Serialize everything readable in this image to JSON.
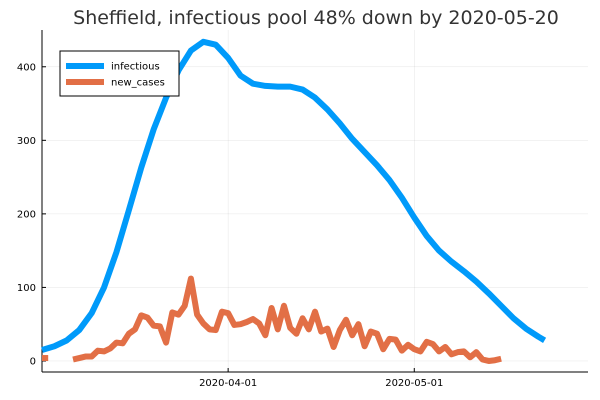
{
  "chart_data": {
    "type": "line",
    "title": "Sheffield, infectious pool 48% down by 2020-05-20",
    "xlabel": "",
    "ylabel": "",
    "x_range": [
      "2020-03-02",
      "2020-05-29"
    ],
    "ylim": [
      -15,
      450
    ],
    "grid": true,
    "legend_position": "top-left",
    "x_ticks": [
      {
        "date": "2020-04-01",
        "label": "2020-04-01"
      },
      {
        "date": "2020-05-01",
        "label": "2020-05-01"
      }
    ],
    "y_ticks": [
      0,
      100,
      200,
      300,
      400
    ],
    "colors": {
      "infectious": "#009AFA",
      "new_cases": "#E26F46"
    },
    "series": [
      {
        "name": "infectious",
        "points": [
          [
            "2020-03-02",
            15
          ],
          [
            "2020-03-04",
            20
          ],
          [
            "2020-03-06",
            28
          ],
          [
            "2020-03-08",
            42
          ],
          [
            "2020-03-10",
            65
          ],
          [
            "2020-03-12",
            100
          ],
          [
            "2020-03-14",
            148
          ],
          [
            "2020-03-16",
            205
          ],
          [
            "2020-03-18",
            263
          ],
          [
            "2020-03-20",
            315
          ],
          [
            "2020-03-22",
            358
          ],
          [
            "2020-03-24",
            395
          ],
          [
            "2020-03-26",
            422
          ],
          [
            "2020-03-28",
            434
          ],
          [
            "2020-03-30",
            430
          ],
          [
            "2020-04-01",
            412
          ],
          [
            "2020-04-03",
            388
          ],
          [
            "2020-04-05",
            377
          ],
          [
            "2020-04-07",
            374
          ],
          [
            "2020-04-09",
            373
          ],
          [
            "2020-04-11",
            373
          ],
          [
            "2020-04-13",
            369
          ],
          [
            "2020-04-15",
            358
          ],
          [
            "2020-04-17",
            342
          ],
          [
            "2020-04-19",
            323
          ],
          [
            "2020-04-21",
            302
          ],
          [
            "2020-04-23",
            284
          ],
          [
            "2020-04-25",
            266
          ],
          [
            "2020-04-27",
            246
          ],
          [
            "2020-04-29",
            222
          ],
          [
            "2020-05-01",
            195
          ],
          [
            "2020-05-03",
            170
          ],
          [
            "2020-05-05",
            150
          ],
          [
            "2020-05-07",
            135
          ],
          [
            "2020-05-09",
            122
          ],
          [
            "2020-05-11",
            108
          ],
          [
            "2020-05-13",
            92
          ],
          [
            "2020-05-15",
            75
          ],
          [
            "2020-05-17",
            58
          ],
          [
            "2020-05-19",
            44
          ],
          [
            "2020-05-21",
            33
          ],
          [
            "2020-05-22",
            28
          ]
        ]
      },
      {
        "name": "new_cases",
        "segments": [
          [
            [
              "2020-03-02",
              4
            ],
            [
              "2020-03-03",
              4
            ]
          ],
          [
            [
              "2020-03-07",
              2
            ],
            [
              "2020-03-08",
              4
            ],
            [
              "2020-03-09",
              6
            ],
            [
              "2020-03-10",
              6
            ],
            [
              "2020-03-11",
              14
            ],
            [
              "2020-03-12",
              13
            ],
            [
              "2020-03-13",
              17
            ],
            [
              "2020-03-14",
              25
            ],
            [
              "2020-03-15",
              24
            ],
            [
              "2020-03-16",
              37
            ],
            [
              "2020-03-17",
              43
            ],
            [
              "2020-03-18",
              62
            ],
            [
              "2020-03-19",
              59
            ],
            [
              "2020-03-20",
              48
            ],
            [
              "2020-03-21",
              47
            ],
            [
              "2020-03-22",
              25
            ],
            [
              "2020-03-23",
              66
            ],
            [
              "2020-03-24",
              63
            ],
            [
              "2020-03-25",
              75
            ],
            [
              "2020-03-26",
              112
            ],
            [
              "2020-03-27",
              63
            ],
            [
              "2020-03-28",
              51
            ],
            [
              "2020-03-29",
              43
            ],
            [
              "2020-03-30",
              42
            ],
            [
              "2020-03-31",
              67
            ],
            [
              "2020-04-01",
              65
            ],
            [
              "2020-04-02",
              49
            ],
            [
              "2020-04-03",
              50
            ],
            [
              "2020-04-04",
              53
            ],
            [
              "2020-04-05",
              57
            ],
            [
              "2020-04-06",
              51
            ],
            [
              "2020-04-07",
              35
            ],
            [
              "2020-04-08",
              72
            ],
            [
              "2020-04-09",
              43
            ],
            [
              "2020-04-10",
              75
            ],
            [
              "2020-04-11",
              45
            ],
            [
              "2020-04-12",
              37
            ],
            [
              "2020-04-13",
              58
            ],
            [
              "2020-04-14",
              43
            ],
            [
              "2020-04-15",
              67
            ],
            [
              "2020-04-16",
              40
            ],
            [
              "2020-04-17",
              44
            ],
            [
              "2020-04-18",
              19
            ],
            [
              "2020-04-19",
              42
            ],
            [
              "2020-04-20",
              56
            ],
            [
              "2020-04-21",
              35
            ],
            [
              "2020-04-22",
              50
            ],
            [
              "2020-04-23",
              20
            ],
            [
              "2020-04-24",
              40
            ],
            [
              "2020-04-25",
              37
            ],
            [
              "2020-04-26",
              16
            ],
            [
              "2020-04-27",
              30
            ],
            [
              "2020-04-28",
              29
            ],
            [
              "2020-04-29",
              14
            ],
            [
              "2020-04-30",
              22
            ],
            [
              "2020-05-01",
              16
            ],
            [
              "2020-05-02",
              13
            ],
            [
              "2020-05-03",
              26
            ],
            [
              "2020-05-04",
              23
            ],
            [
              "2020-05-05",
              13
            ],
            [
              "2020-05-06",
              19
            ],
            [
              "2020-05-07",
              9
            ],
            [
              "2020-05-08",
              12
            ],
            [
              "2020-05-09",
              13
            ],
            [
              "2020-05-10",
              5
            ],
            [
              "2020-05-11",
              12
            ],
            [
              "2020-05-12",
              2
            ],
            [
              "2020-05-13",
              0
            ],
            [
              "2020-05-14",
              1
            ],
            [
              "2020-05-15",
              3
            ]
          ]
        ]
      }
    ]
  }
}
